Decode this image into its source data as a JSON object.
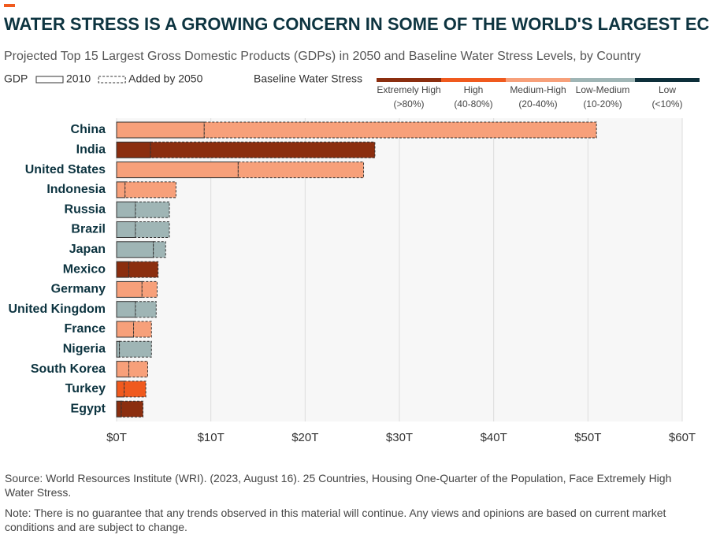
{
  "chart_data": {
    "type": "bar",
    "orientation": "horizontal",
    "stacked": true,
    "title": "WATER STRESS IS A GROWING CONCERN IN SOME OF THE WORLD'S LARGEST ECONOMIES",
    "subtitle": "Projected Top 15 Largest Gross Domestic Products (GDPs) in 2050 and Baseline Water Stress Levels, by Country",
    "legend_title": "GDP",
    "categories": [
      "China",
      "India",
      "United States",
      "Indonesia",
      "Russia",
      "Brazil",
      "Japan",
      "Mexico",
      "Germany",
      "United Kingdom",
      "France",
      "Nigeria",
      "South Korea",
      "Turkey",
      "Egypt"
    ],
    "series": [
      {
        "name": "2010",
        "border": "solid",
        "values": [
          9.3,
          3.6,
          12.9,
          0.9,
          2.0,
          2.0,
          3.9,
          1.3,
          2.7,
          2.0,
          1.8,
          0.3,
          1.3,
          0.8,
          0.5
        ]
      },
      {
        "name": "Added by 2050",
        "border": "dashed",
        "values": [
          41.6,
          23.8,
          13.3,
          5.4,
          3.6,
          3.6,
          1.3,
          3.1,
          1.6,
          2.2,
          1.9,
          3.4,
          2.0,
          2.3,
          2.3
        ]
      }
    ],
    "bar_colors": [
      "#f7a07a",
      "#8b2e0f",
      "#f7a07a",
      "#f7a07a",
      "#9fb5b5",
      "#9fb5b5",
      "#9fb5b5",
      "#8b2e0f",
      "#f7a07a",
      "#9fb5b5",
      "#f7a07a",
      "#9fb5b5",
      "#f7a07a",
      "#f05a1e",
      "#8b2e0f"
    ],
    "stress_legend": {
      "title": "Baseline Water Stress",
      "levels": [
        {
          "label": "Extremely High",
          "range": "(>80%)",
          "color": "#8b2e0f"
        },
        {
          "label": "High",
          "range": "(40-80%)",
          "color": "#f05a1e"
        },
        {
          "label": "Medium-High",
          "range": "(20-40%)",
          "color": "#f7a07a"
        },
        {
          "label": "Low-Medium",
          "range": "(10-20%)",
          "color": "#9fb5b5"
        },
        {
          "label": "Low",
          "range": "(<10%)",
          "color": "#0d2f3a"
        }
      ]
    },
    "xlim": [
      0,
      60
    ],
    "xticks": [
      {
        "value": 0,
        "label": "$0T"
      },
      {
        "value": 10,
        "label": "$10T"
      },
      {
        "value": 20,
        "label": "$20T"
      },
      {
        "value": 30,
        "label": "$30T"
      },
      {
        "value": 40,
        "label": "$40T"
      },
      {
        "value": 50,
        "label": "$50T"
      },
      {
        "value": 60,
        "label": "$60T"
      }
    ],
    "grid": true,
    "source": "Source: World Resources Institute (WRI). (2023, August 16). 25 Countries, Housing One-Quarter of the Population, Face Extremely High Water Stress.",
    "note": "Note: There is no guarantee that any trends observed in this material will continue. Any views and opinions are based on current market conditions and are subject to change."
  }
}
